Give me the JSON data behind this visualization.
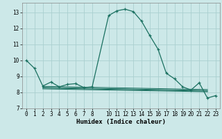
{
  "xlabel": "Humidex (Indice chaleur)",
  "background_color": "#cce8e8",
  "grid_color": "#aacfcf",
  "line_color": "#1a7060",
  "xlim": [
    -0.5,
    23.5
  ],
  "ylim": [
    7.0,
    13.6
  ],
  "yticks": [
    7,
    8,
    9,
    10,
    11,
    12,
    13
  ],
  "xticks": [
    0,
    1,
    2,
    3,
    4,
    5,
    6,
    7,
    8,
    10,
    11,
    12,
    13,
    14,
    15,
    16,
    17,
    18,
    19,
    20,
    21,
    22,
    23
  ],
  "main_x": [
    0,
    1,
    2,
    3,
    4,
    5,
    6,
    7,
    8,
    10,
    11,
    12,
    13,
    14,
    15,
    16,
    17,
    18,
    19,
    20,
    21,
    22,
    23
  ],
  "main_y": [
    10.0,
    9.5,
    8.4,
    8.65,
    8.35,
    8.5,
    8.55,
    8.3,
    8.35,
    12.8,
    13.1,
    13.2,
    13.05,
    12.45,
    11.55,
    10.7,
    9.2,
    8.85,
    8.35,
    8.15,
    8.6,
    7.65,
    7.8
  ],
  "flat_lines": [
    {
      "x": [
        2,
        22
      ],
      "y": [
        8.38,
        8.18
      ]
    },
    {
      "x": [
        2,
        22
      ],
      "y": [
        8.32,
        8.12
      ]
    },
    {
      "x": [
        2,
        22
      ],
      "y": [
        8.27,
        8.08
      ]
    },
    {
      "x": [
        2,
        22
      ],
      "y": [
        8.22,
        8.04
      ]
    }
  ]
}
